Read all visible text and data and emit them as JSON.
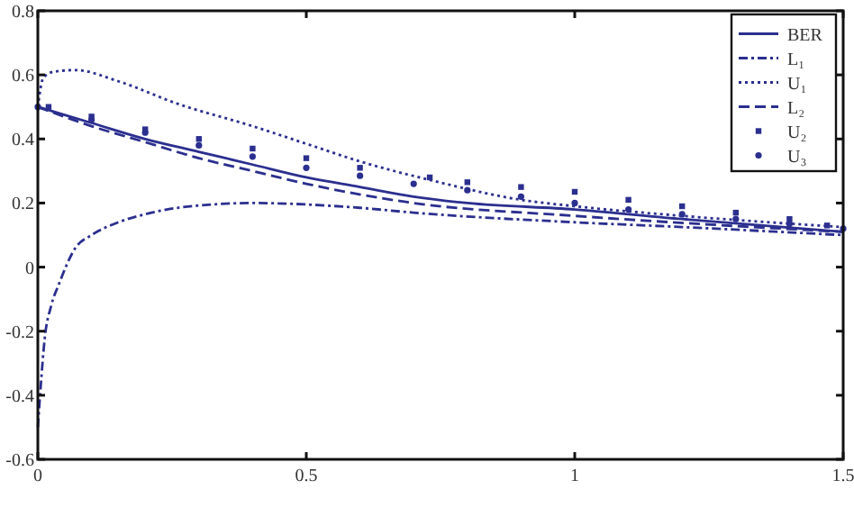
{
  "chart_data": {
    "type": "line",
    "xlim": [
      0,
      1.5
    ],
    "ylim": [
      -0.6,
      0.8
    ],
    "xticks": [
      0,
      0.5,
      1,
      1.5
    ],
    "yticks": [
      -0.6,
      -0.4,
      -0.2,
      0,
      0.2,
      0.4,
      0.6,
      0.8
    ],
    "grid": false,
    "legend": "top right",
    "series": [
      {
        "name": "BER",
        "color": "#2b2f8f",
        "line_style": "solid",
        "x": [
          0,
          0.1,
          0.2,
          0.3,
          0.4,
          0.5,
          0.6,
          0.7,
          0.8,
          1.0,
          1.2,
          1.5
        ],
        "values": [
          0.5,
          0.45,
          0.4,
          0.36,
          0.32,
          0.28,
          0.25,
          0.22,
          0.2,
          0.18,
          0.15,
          0.11
        ]
      },
      {
        "name": "L₁",
        "color": "#2b2f8f",
        "line_style": "dashdot",
        "x": [
          0,
          0.005,
          0.013,
          0.025,
          0.04,
          0.07,
          0.1,
          0.15,
          0.2,
          0.26,
          0.4,
          0.6,
          0.7,
          1.0,
          1.2,
          1.5
        ],
        "values": [
          -0.5,
          -0.38,
          -0.22,
          -0.12,
          -0.05,
          0.06,
          0.1,
          0.14,
          0.165,
          0.185,
          0.2,
          0.185,
          0.17,
          0.14,
          0.125,
          0.1
        ]
      },
      {
        "name": "U₁",
        "color": "#2b2f8f",
        "line_style": "dotted",
        "x": [
          0,
          0.01,
          0.03,
          0.07,
          0.15,
          0.26,
          0.4,
          0.5,
          0.6,
          0.735,
          0.9,
          1.0,
          1.2,
          1.5
        ],
        "values": [
          0.5,
          0.59,
          0.61,
          0.615,
          0.58,
          0.51,
          0.44,
          0.385,
          0.33,
          0.27,
          0.21,
          0.19,
          0.16,
          0.125
        ]
      },
      {
        "name": "L₂",
        "color": "#2b2f8f",
        "line_style": "dashed",
        "x": [
          0,
          0.1,
          0.2,
          0.3,
          0.4,
          0.5,
          0.7,
          1.0,
          1.5
        ],
        "values": [
          0.5,
          0.44,
          0.39,
          0.34,
          0.3,
          0.26,
          0.2,
          0.16,
          0.11
        ]
      },
      {
        "name": "U₂",
        "color": "#2b2f8f",
        "type": "scatter",
        "marker": "square",
        "x": [
          0.02,
          0.1,
          0.2,
          0.3,
          0.4,
          0.5,
          0.6,
          0.73,
          0.8,
          0.9,
          1.0,
          1.1,
          1.2,
          1.3,
          1.4,
          1.47
        ],
        "values": [
          0.5,
          0.47,
          0.43,
          0.4,
          0.37,
          0.34,
          0.31,
          0.28,
          0.265,
          0.25,
          0.235,
          0.21,
          0.19,
          0.17,
          0.15,
          0.13
        ]
      },
      {
        "name": "U₃",
        "color": "#2b2f8f",
        "type": "scatter",
        "marker": "circle",
        "x": [
          0,
          0.1,
          0.2,
          0.3,
          0.4,
          0.5,
          0.6,
          0.7,
          0.8,
          0.9,
          1.0,
          1.1,
          1.2,
          1.3,
          1.4,
          1.5
        ],
        "values": [
          0.5,
          0.46,
          0.42,
          0.38,
          0.345,
          0.31,
          0.285,
          0.26,
          0.24,
          0.22,
          0.2,
          0.18,
          0.165,
          0.15,
          0.135,
          0.12
        ]
      }
    ]
  }
}
